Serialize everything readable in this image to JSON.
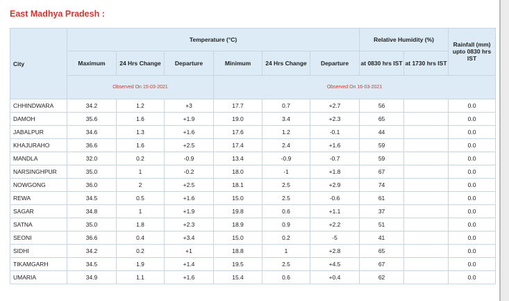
{
  "header": {
    "title": "East Madhya Pradesh :"
  },
  "table": {
    "city_header": "City",
    "group_headers": {
      "temperature": "Temperature (°C)",
      "humidity": "Relative Humidity (%)",
      "rainfall": "Rainfall (mm) upto 0830 hrs IST"
    },
    "columns": [
      "Maximum",
      "24 Hrs Change",
      "Departure",
      "Minimum",
      "24 Hrs Change",
      "Departure",
      "at 0830 hrs IST",
      "at 1730 hrs IST"
    ],
    "observed": [
      "Observed On 15-03-2021",
      "Observed On 16-03-2021"
    ],
    "rows": [
      [
        "CHHINDWARA",
        "34.2",
        "1.2",
        "+3",
        "17.7",
        "0.7",
        "+2.7",
        "56",
        "",
        "0.0"
      ],
      [
        "DAMOH",
        "35.6",
        "1.6",
        "+1.9",
        "19.0",
        "3.4",
        "+2.3",
        "65",
        "",
        "0.0"
      ],
      [
        "JABALPUR",
        "34.6",
        "1.3",
        "+1.6",
        "17.6",
        "1.2",
        "-0.1",
        "44",
        "",
        "0.0"
      ],
      [
        "KHAJURAHO",
        "36.6",
        "1.6",
        "+2.5",
        "17.4",
        "2.4",
        "+1.6",
        "59",
        "",
        "0.0"
      ],
      [
        "MANDLA",
        "32.0",
        "0.2",
        "-0.9",
        "13.4",
        "-0.9",
        "-0.7",
        "59",
        "",
        "0.0"
      ],
      [
        "NARSINGHPUR",
        "35.0",
        "1",
        "-0.2",
        "18.0",
        "-1",
        "+1.8",
        "67",
        "",
        "0.0"
      ],
      [
        "NOWGONG",
        "36.0",
        "2",
        "+2.5",
        "18.1",
        "2.5",
        "+2.9",
        "74",
        "",
        "0.0"
      ],
      [
        "REWA",
        "34.5",
        "0.5",
        "+1.6",
        "15.0",
        "2.5",
        "-0.6",
        "61",
        "",
        "0.0"
      ],
      [
        "SAGAR",
        "34.8",
        "1",
        "+1.9",
        "19.8",
        "0.6",
        "+1.1",
        "37",
        "",
        "0.0"
      ],
      [
        "SATNA",
        "35.0",
        "1.8",
        "+2.3",
        "18.9",
        "0.9",
        "+2.2",
        "51",
        "",
        "0.0"
      ],
      [
        "SEONI",
        "36.6",
        "0.4",
        "+3.4",
        "15.0",
        "0.2",
        "-5",
        "41",
        "",
        "0.0"
      ],
      [
        "SIDHI",
        "34.2",
        "0.2",
        "+1",
        "18.8",
        "1",
        "+2.8",
        "65",
        "",
        "0.0"
      ],
      [
        "TIKAMGARH",
        "34.5",
        "1.9",
        "+1.4",
        "19.5",
        "2.5",
        "+4.5",
        "67",
        "",
        "0.0"
      ],
      [
        "UMARIA",
        "34.9",
        "1.1",
        "+1.6",
        "15.4",
        "0.6",
        "+0.4",
        "62",
        "",
        "0.0"
      ]
    ]
  }
}
